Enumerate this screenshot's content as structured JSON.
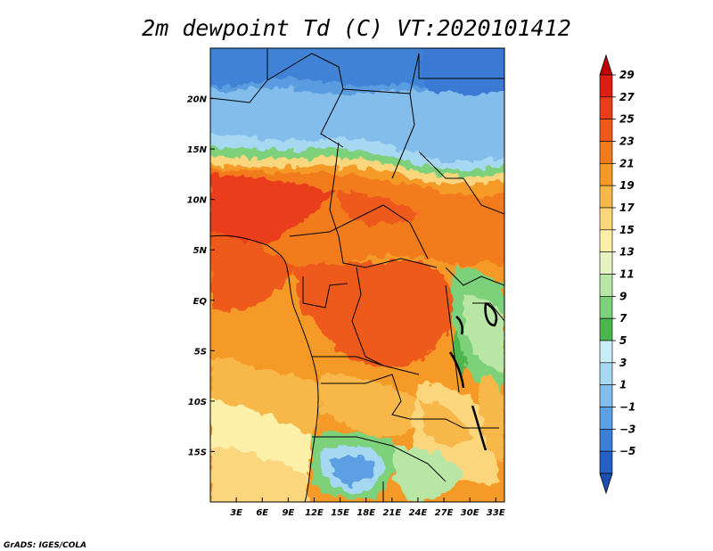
{
  "title": "2m dewpoint Td (C) VT:2020101412",
  "credit": "GrADS: IGES/COLA",
  "map": {
    "lon_range": [
      0,
      34
    ],
    "lat_range": [
      -20,
      25
    ],
    "lon_ticks": [
      "3E",
      "6E",
      "9E",
      "12E",
      "15E",
      "18E",
      "21E",
      "24E",
      "27E",
      "30E",
      "33E"
    ],
    "lat_ticks": [
      "20N",
      "15N",
      "10N",
      "5N",
      "EQ",
      "5S",
      "10S",
      "15S"
    ]
  },
  "colorbar": {
    "labels": [
      "29",
      "27",
      "25",
      "23",
      "21",
      "19",
      "17",
      "15",
      "13",
      "11",
      "9",
      "7",
      "5",
      "3",
      "1",
      "-1",
      "-3",
      "-5"
    ],
    "colors": [
      "#c00000",
      "#dd1e12",
      "#ea3d1a",
      "#ee5a1c",
      "#f27b1d",
      "#f59a26",
      "#f8b84a",
      "#fbd67b",
      "#fdf0a8",
      "#e7f4c2",
      "#b8e6a5",
      "#7dd17a",
      "#4db54d",
      "#c9eef7",
      "#a6d8f2",
      "#82bdec",
      "#5c9fe2",
      "#3b7fd6",
      "#2560c6",
      "#1b4fb3"
    ]
  }
}
